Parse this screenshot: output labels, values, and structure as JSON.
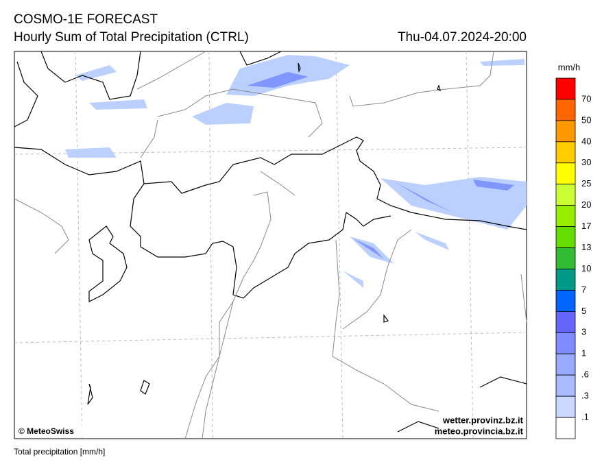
{
  "header": {
    "title": "COSMO-1E FORECAST",
    "subtitle": "Hourly Sum of Total Precipitation (CTRL)",
    "datetime": "Thu-04.07.2024-20:00"
  },
  "colorbar": {
    "unit": "mm/h",
    "colors": [
      "#ff0000",
      "#ff6600",
      "#ff9900",
      "#ffcc00",
      "#ffff00",
      "#ccff33",
      "#99ee00",
      "#66dd00",
      "#33bb33",
      "#009988",
      "#0066ff",
      "#6666ff",
      "#7f8cff",
      "#99aaff",
      "#aabbff",
      "#ccd8ff",
      "#ffffff"
    ],
    "labels": [
      "70",
      "50",
      "40",
      "30",
      "25",
      "20",
      "17",
      "13",
      "10",
      "7",
      "5",
      "3",
      "1",
      ".6",
      ".3",
      ".1"
    ]
  },
  "map": {
    "copyright": "© MeteoSwiss",
    "site1": "wetter.provinz.bz.it",
    "site2": "meteo.provincia.bz.it"
  },
  "footer": "Total precipitation [mm/h]"
}
